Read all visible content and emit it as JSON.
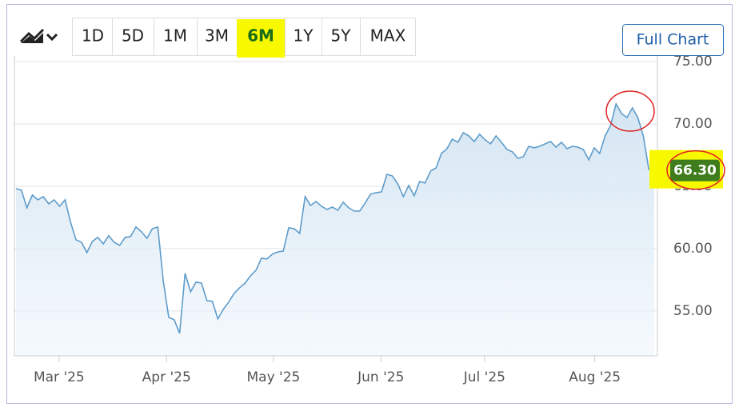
{
  "toolbar": {
    "buttons": [
      "1D",
      "5D",
      "1M",
      "3M",
      "6M",
      "1Y",
      "5Y",
      "MAX"
    ],
    "full_chart": "Full Chart"
  },
  "chart_data": {
    "type": "area",
    "values": [
      64.81,
      64.68,
      63.27,
      64.29,
      63.91,
      64.17,
      63.59,
      63.91,
      63.4,
      63.91,
      62.12,
      60.71,
      60.51,
      59.68,
      60.58,
      60.9,
      60.38,
      61.03,
      60.51,
      60.26,
      60.9,
      60.96,
      61.73,
      61.35,
      60.83,
      61.6,
      61.73,
      57.37,
      54.49,
      54.29,
      53.21,
      58.01,
      56.54,
      57.31,
      57.24,
      55.83,
      55.77,
      54.36,
      55.13,
      55.71,
      56.41,
      56.86,
      57.24,
      57.82,
      58.27,
      59.23,
      59.17,
      59.55,
      59.74,
      59.81,
      61.67,
      61.6,
      61.22,
      64.17,
      63.46,
      63.78,
      63.4,
      63.14,
      63.33,
      63.08,
      63.72,
      63.27,
      63.01,
      63.01,
      63.65,
      64.36,
      64.49,
      64.55,
      65.96,
      65.83,
      65.19,
      64.17,
      65.06,
      64.23,
      65.38,
      65.26,
      66.22,
      66.47,
      67.63,
      68.01,
      68.78,
      68.53,
      69.29,
      69.04,
      68.59,
      69.17,
      68.72,
      68.4,
      69.04,
      68.53,
      67.95,
      67.76,
      67.24,
      67.37,
      68.21,
      68.08,
      68.21,
      68.4,
      68.59,
      68.14,
      68.53,
      68.01,
      68.21,
      68.14,
      67.95,
      67.12,
      68.08,
      67.63,
      69.04,
      69.87,
      71.6,
      70.83,
      70.51,
      71.28,
      70.51,
      69.04,
      66.35,
      66.3
    ],
    "value_labels": {
      "117": "66.30"
    },
    "color": "#5d9ccb",
    "xlim": [
      0,
      117
    ],
    "xticks": [
      {
        "value": 7.9,
        "label": "Mar '25"
      },
      {
        "value": 27.6,
        "label": "Apr '25"
      },
      {
        "value": 47.2,
        "label": "May '25"
      },
      {
        "value": 66.9,
        "label": "Jun '25"
      },
      {
        "value": 85.9,
        "label": "Jul '25"
      },
      {
        "value": 106.1,
        "label": "Aug '25"
      }
    ],
    "ylim": [
      51.4,
      75.45
    ],
    "yticks": [
      {
        "value": 55,
        "label": "55.00"
      },
      {
        "value": 60,
        "label": "60.00"
      },
      {
        "value": 65,
        "label": "65.00"
      },
      {
        "value": 70,
        "label": "70.00"
      },
      {
        "value": 75,
        "label": "75.00"
      }
    ],
    "grid": true
  }
}
